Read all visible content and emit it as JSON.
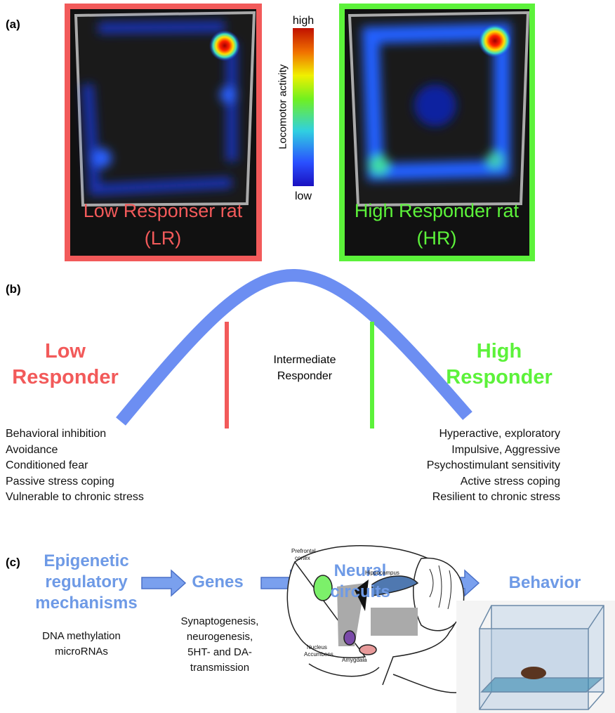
{
  "panel_a": {
    "label": "(a)",
    "left": {
      "caption": [
        "Low Responser rat",
        "(LR)"
      ]
    },
    "right": {
      "caption": [
        "High Responder rat",
        "(HR)"
      ]
    },
    "colorbar": {
      "high": "high",
      "low": "low",
      "title": "Locomotor activity"
    }
  },
  "panel_b": {
    "label": "(b)",
    "low": [
      "Low",
      "Responder"
    ],
    "intermediate": [
      "Intermediate",
      "Responder"
    ],
    "high": [
      "High",
      "Responder"
    ],
    "low_traits": [
      "Behavioral inhibition",
      "Avoidance",
      "Conditioned fear",
      "Passive stress coping",
      "Vulnerable to chronic stress"
    ],
    "high_traits": [
      "Hyperactive, exploratory",
      "Impulsive, Aggressive",
      "Psychostimulant sensitivity",
      "Active stress coping",
      "Resilient to chronic stress"
    ]
  },
  "panel_c": {
    "label": "(c)",
    "steps": [
      [
        "Epigenetic",
        "regulatory",
        "mechanisms"
      ],
      [
        "Genes"
      ],
      [
        "Neural",
        "circuits"
      ],
      [
        "Behavior"
      ]
    ],
    "epigenetic_notes": [
      "DNA methylation",
      "microRNAs"
    ],
    "gene_notes": [
      "Synaptogenesis,",
      "neurogenesis,",
      "5HT- and DA-",
      "transmission"
    ],
    "brain_labels": {
      "prefrontal": [
        "Prefrontal",
        "cortex"
      ],
      "hippocampus": "Hippocampus",
      "accumbens": [
        "Nucleus",
        "Accumbens"
      ],
      "amygdala": "Amygdala"
    }
  }
}
